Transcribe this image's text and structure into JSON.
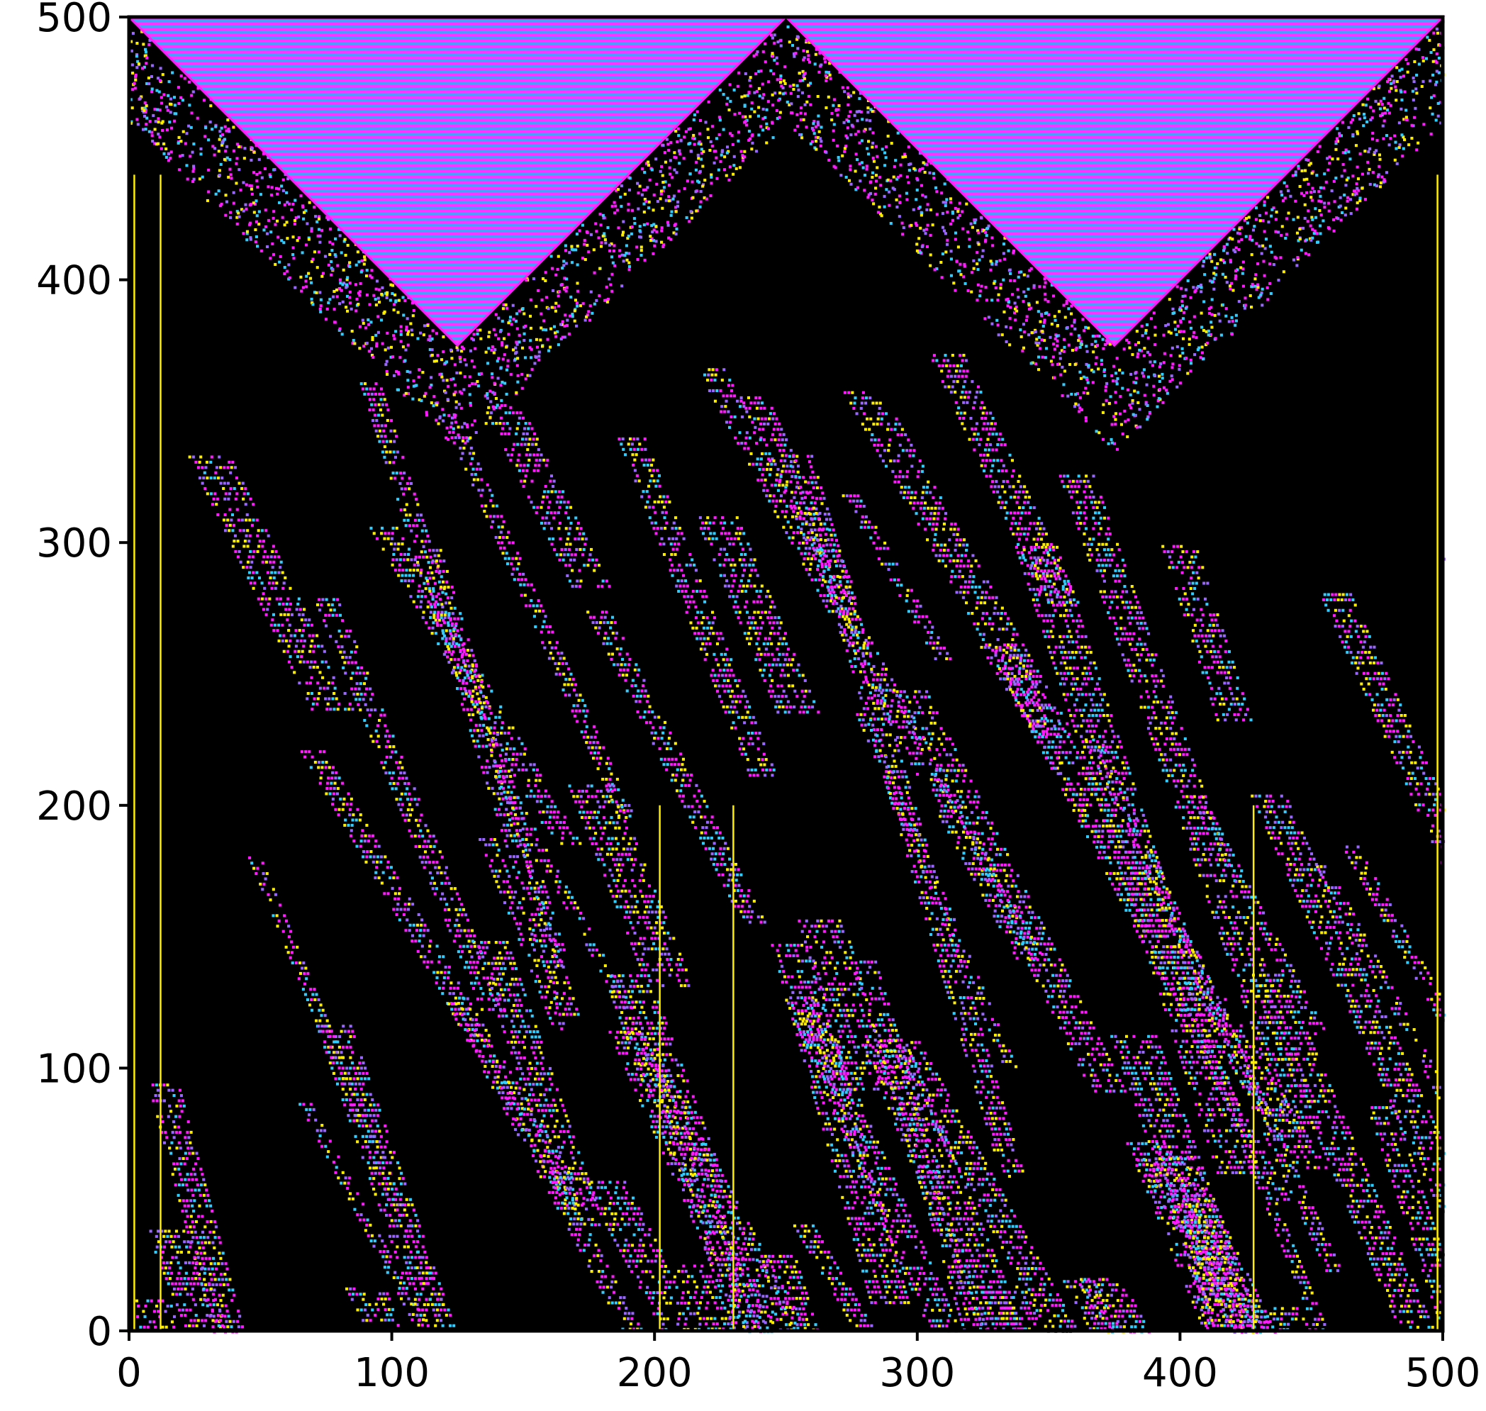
{
  "chart_data": {
    "type": "heatmap",
    "description_of_marks": "cellular automaton space-time pattern",
    "xlim": [
      0,
      500
    ],
    "ylim": [
      0,
      500
    ],
    "xticks": [
      0,
      100,
      200,
      300,
      400,
      500
    ],
    "yticks": [
      0,
      100,
      200,
      300,
      400,
      500
    ],
    "xtick_labels": [
      "0",
      "100",
      "200",
      "300",
      "400",
      "500"
    ],
    "ytick_labels": [
      "0",
      "100",
      "200",
      "300",
      "400",
      "500"
    ],
    "grid": false,
    "legend": "none",
    "colors": {
      "background": "#000000",
      "yellow": "#ffee00",
      "magenta": "#ff1aff",
      "cyan": "#33ccff",
      "violet": "#9966ff",
      "blue_stripe": "#4d7dff"
    },
    "triangles_x_vertices": [
      {
        "left_top": 0,
        "bottom": 125,
        "right_top": 250,
        "bottom_y": 375
      },
      {
        "left_top": 250,
        "bottom": 375,
        "right_top": 500,
        "bottom_y": 375
      }
    ],
    "peak_x": [
      250
    ],
    "peak_y": 500,
    "persistent_vertical_lines_x": [
      2,
      12,
      202,
      230,
      428,
      498
    ]
  }
}
